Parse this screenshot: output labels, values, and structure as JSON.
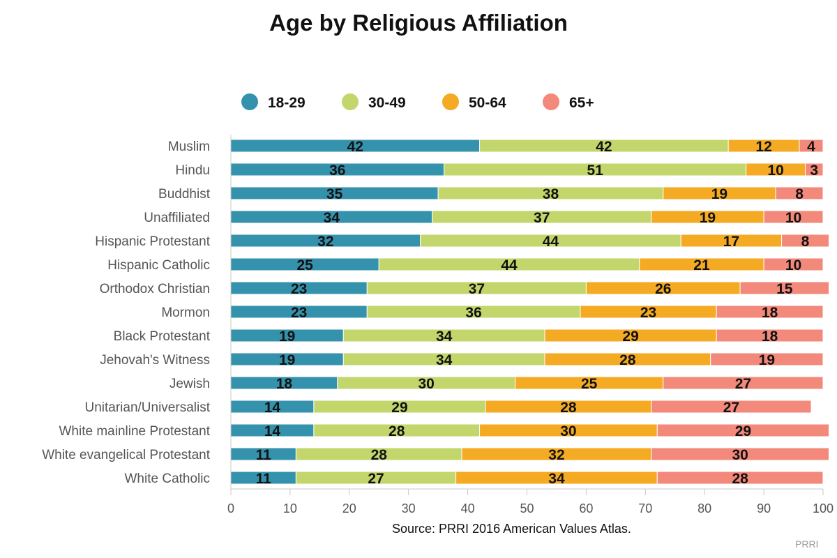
{
  "chart_data": {
    "type": "bar",
    "orientation": "horizontal",
    "stacked": true,
    "title": "Age by Religious Affiliation",
    "source": "Source: PRRI 2016 American Values Atlas.",
    "credit": "PRRI",
    "xlim": [
      0,
      100
    ],
    "xticks": [
      0,
      10,
      20,
      30,
      40,
      50,
      60,
      70,
      80,
      90,
      100
    ],
    "legend_position": "top",
    "categories": [
      "Muslim",
      "Hindu",
      "Buddhist",
      "Unaffiliated",
      "Hispanic Protestant",
      "Hispanic Catholic",
      "Orthodox Christian",
      "Mormon",
      "Black Protestant",
      "Jehovah's Witness",
      "Jewish",
      "Unitarian/Universalist",
      "White mainline Protestant",
      "White evangelical Protestant",
      "White Catholic"
    ],
    "series": [
      {
        "name": "18-29",
        "color": "#3592ad",
        "values": [
          42,
          36,
          35,
          34,
          32,
          25,
          23,
          23,
          19,
          19,
          18,
          14,
          14,
          11,
          11
        ]
      },
      {
        "name": "30-49",
        "color": "#c2d66b",
        "values": [
          42,
          51,
          38,
          37,
          44,
          44,
          37,
          36,
          34,
          34,
          30,
          29,
          28,
          28,
          27
        ]
      },
      {
        "name": "50-64",
        "color": "#f4aa22",
        "values": [
          12,
          10,
          19,
          19,
          17,
          21,
          26,
          23,
          29,
          28,
          25,
          28,
          30,
          32,
          34
        ]
      },
      {
        "name": "65+",
        "color": "#f2897a",
        "values": [
          4,
          3,
          8,
          10,
          8,
          10,
          15,
          18,
          18,
          19,
          27,
          27,
          29,
          30,
          28
        ]
      }
    ]
  }
}
